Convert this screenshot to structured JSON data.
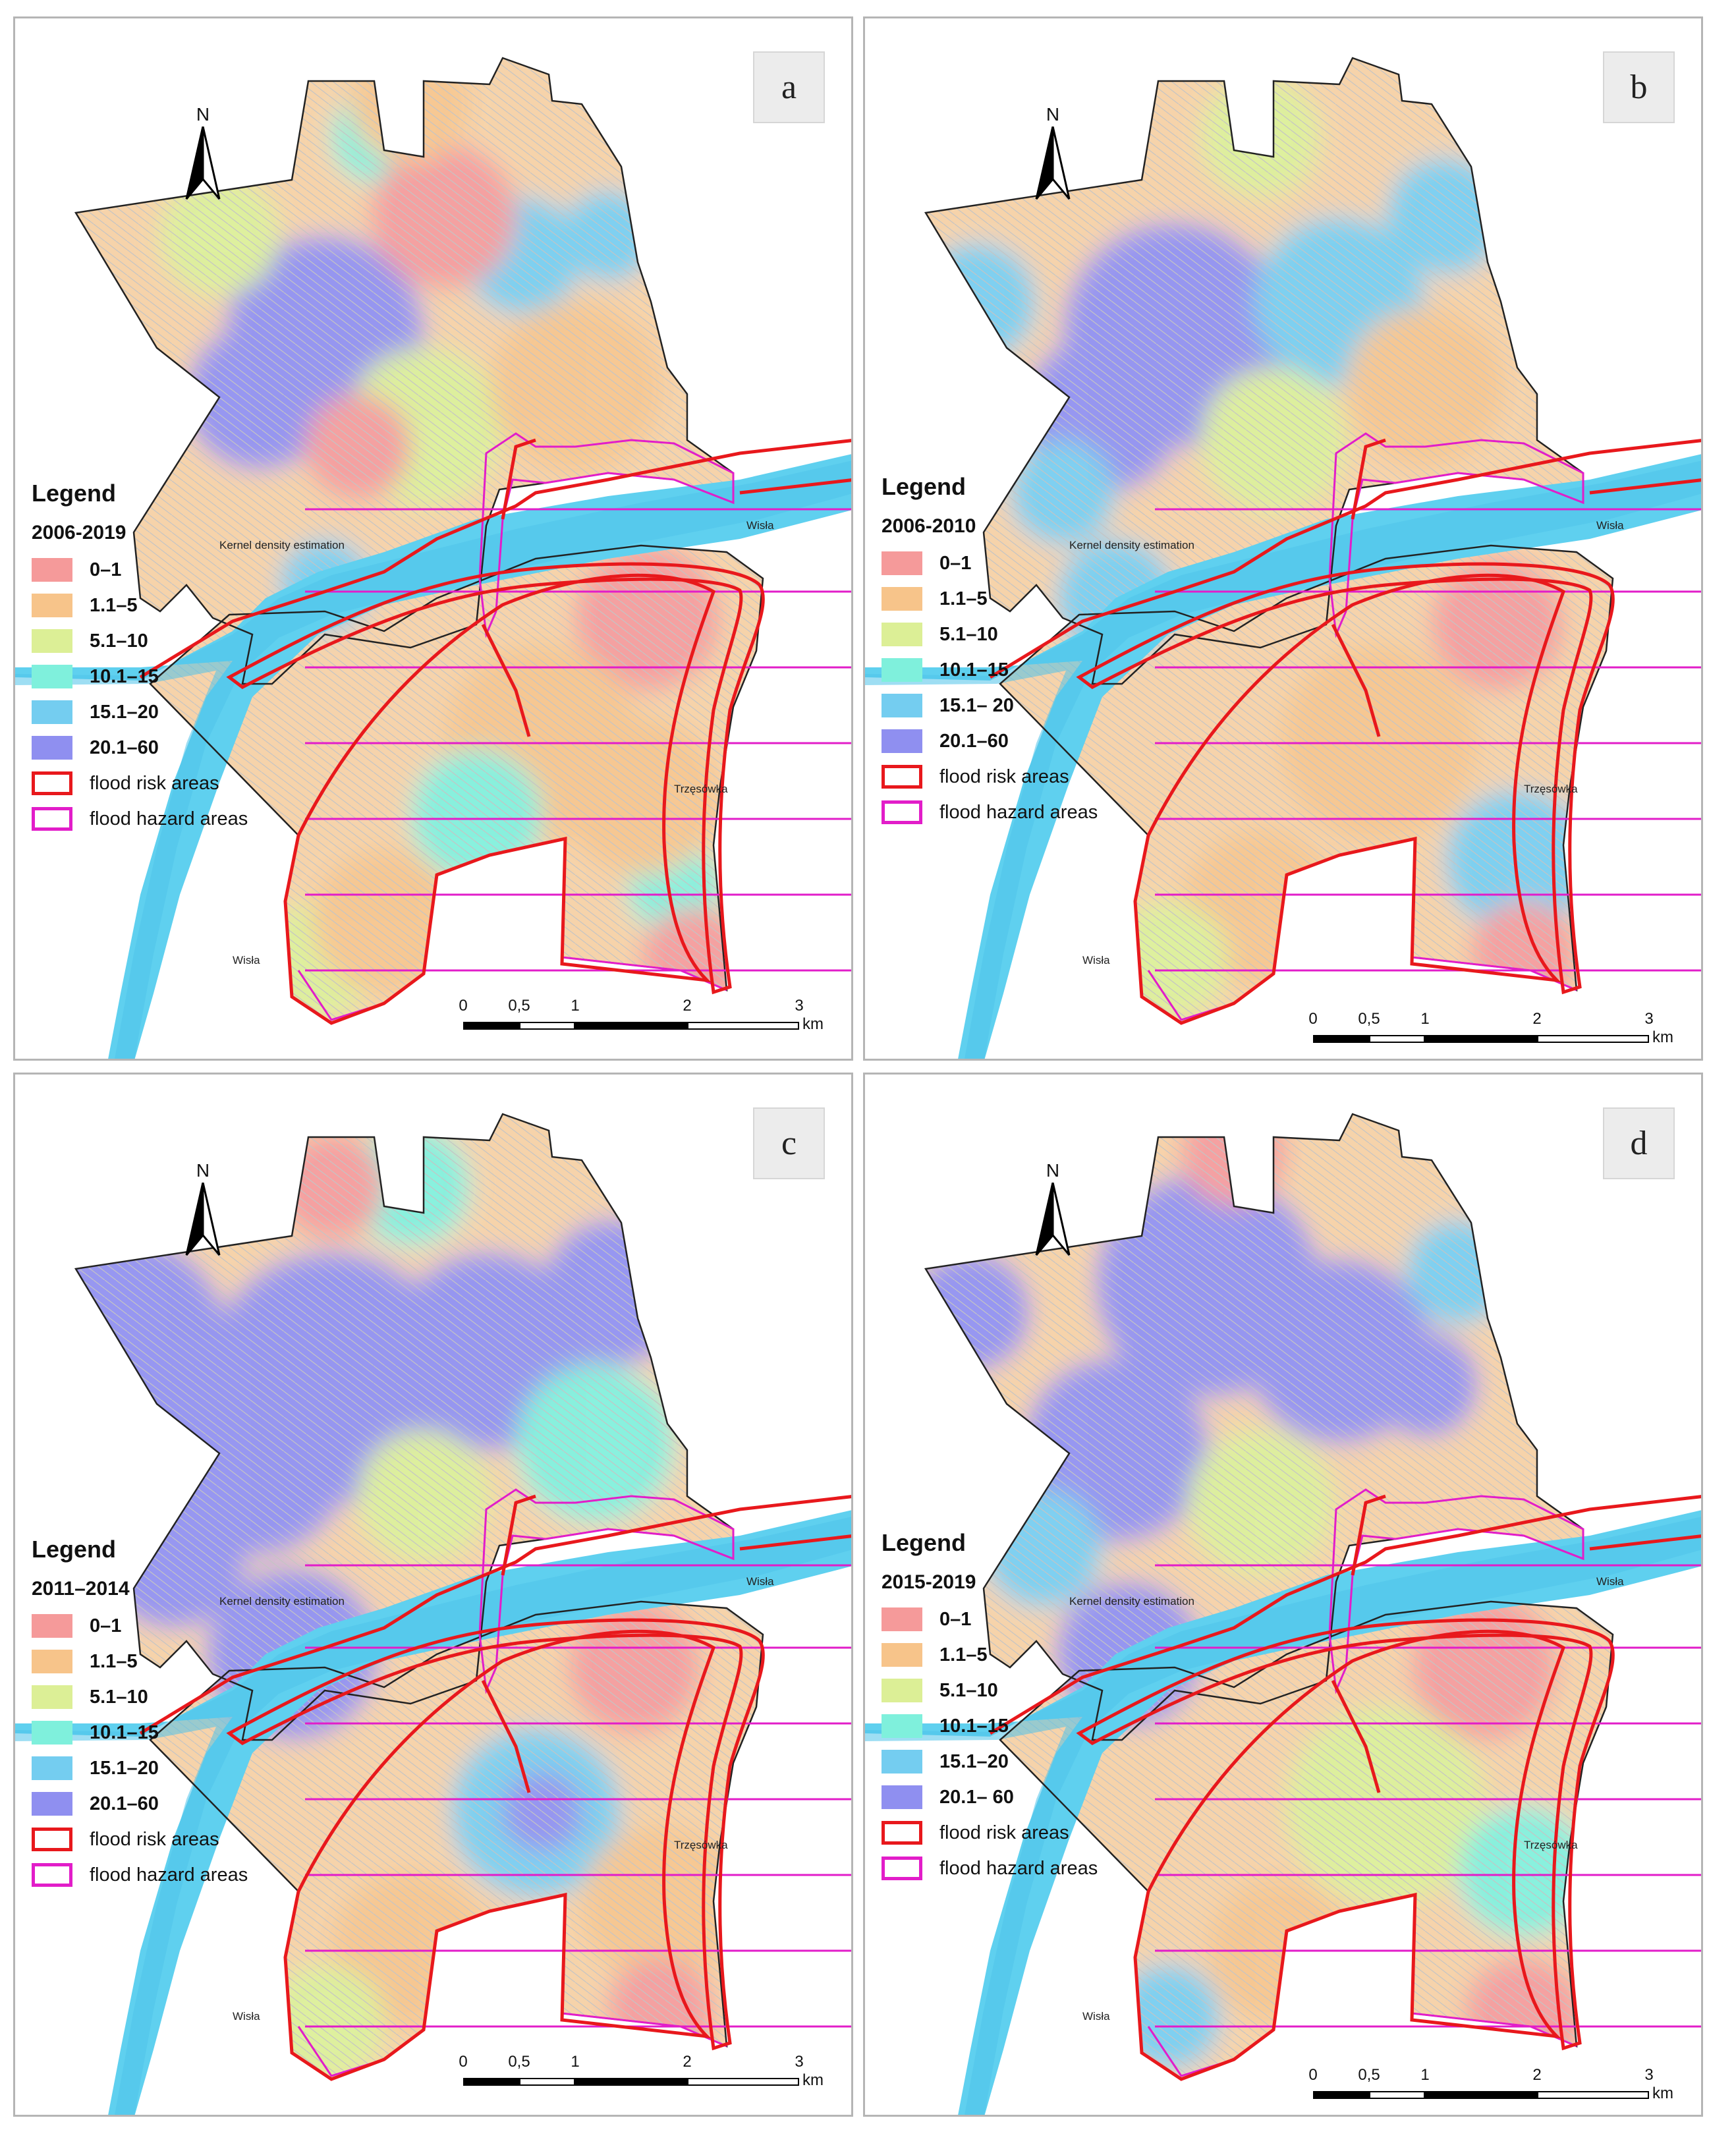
{
  "panels": [
    {
      "letter": "a",
      "period": "2006-2019"
    },
    {
      "letter": "b",
      "period": "2006-2010"
    },
    {
      "letter": "c",
      "period": "2011–2014"
    },
    {
      "letter": "d",
      "period": "2015-2019"
    }
  ],
  "north_label": "N",
  "legend": {
    "title": "Legend",
    "classes": [
      {
        "label": "0–1",
        "color": "#f59a9a"
      },
      {
        "label": "1.1–5",
        "color": "#f7c48a"
      },
      {
        "label": "5.1–10",
        "color": "#dcef96"
      },
      {
        "label": "10.1–15",
        "color": "#7ff0dc"
      },
      {
        "label": "15.1–20",
        "color": "#74cdf0"
      },
      {
        "label": "20.1–60",
        "color": "#8f8ff0"
      }
    ],
    "panel_class_labels": {
      "b": {
        "4": "15.1– 20"
      },
      "d": {
        "5": "20.1– 60"
      }
    },
    "flood_risk": {
      "label": "flood risk areas",
      "color": "#e8181c"
    },
    "flood_hazard": {
      "label": "flood hazard areas",
      "color": "#e21dc9"
    }
  },
  "places": {
    "kernel": "Kernel density estimation",
    "wisla": "Wisła",
    "trzesowka": "Trzęsówka"
  },
  "scale_bar": {
    "ticks": [
      "0",
      "0,5",
      "1",
      "2",
      "3"
    ],
    "unit": "km"
  },
  "colors": {
    "river": "#5fd0ef",
    "boundary": "#222222",
    "streets": "#c4c4c4"
  }
}
